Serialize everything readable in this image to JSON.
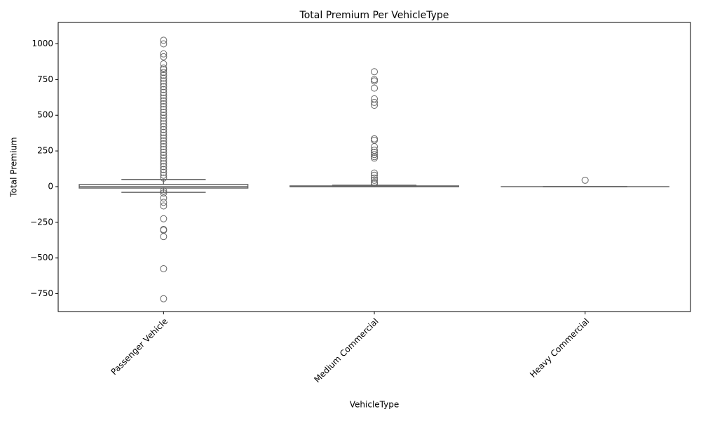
{
  "chart_data": {
    "type": "boxplot",
    "title": "Total Premium Per VehicleType",
    "xlabel": "VehicleType",
    "ylabel": "Total Premium",
    "categories": [
      "Passenger Vehicle",
      "Medium Commercial",
      "Heavy Commercial"
    ],
    "color": "#666666",
    "ylim": [
      -875,
      1150
    ],
    "yticks": [
      {
        "value": -750,
        "label": "−750"
      },
      {
        "value": -500,
        "label": "−500"
      },
      {
        "value": -250,
        "label": "−250"
      },
      0,
      250,
      500,
      750,
      1000
    ],
    "boxes": [
      {
        "whislo": -40,
        "q1": -10,
        "med": 0,
        "q3": 15,
        "whishi": 50,
        "fliers": [
          1025,
          1000,
          930,
          910,
          860,
          830,
          820,
          800,
          780,
          760,
          740,
          720,
          700,
          680,
          660,
          640,
          620,
          600,
          580,
          560,
          540,
          520,
          500,
          480,
          460,
          440,
          420,
          400,
          380,
          360,
          340,
          320,
          300,
          280,
          260,
          240,
          220,
          200,
          180,
          160,
          140,
          120,
          100,
          80,
          60,
          -30,
          -45,
          -80,
          -110,
          -135,
          -225,
          -300,
          -305,
          -350,
          -575,
          -785
        ]
      },
      {
        "whislo": 0,
        "q1": 0,
        "med": 0,
        "q3": 5,
        "whishi": 10,
        "fliers": [
          805,
          750,
          740,
          690,
          615,
          590,
          570,
          335,
          325,
          280,
          255,
          240,
          225,
          210,
          200,
          95,
          80,
          60,
          45,
          30,
          20
        ]
      },
      {
        "whislo": 0,
        "q1": 0,
        "med": 0,
        "q3": 0,
        "whishi": 0,
        "fliers": [
          45
        ]
      }
    ]
  }
}
